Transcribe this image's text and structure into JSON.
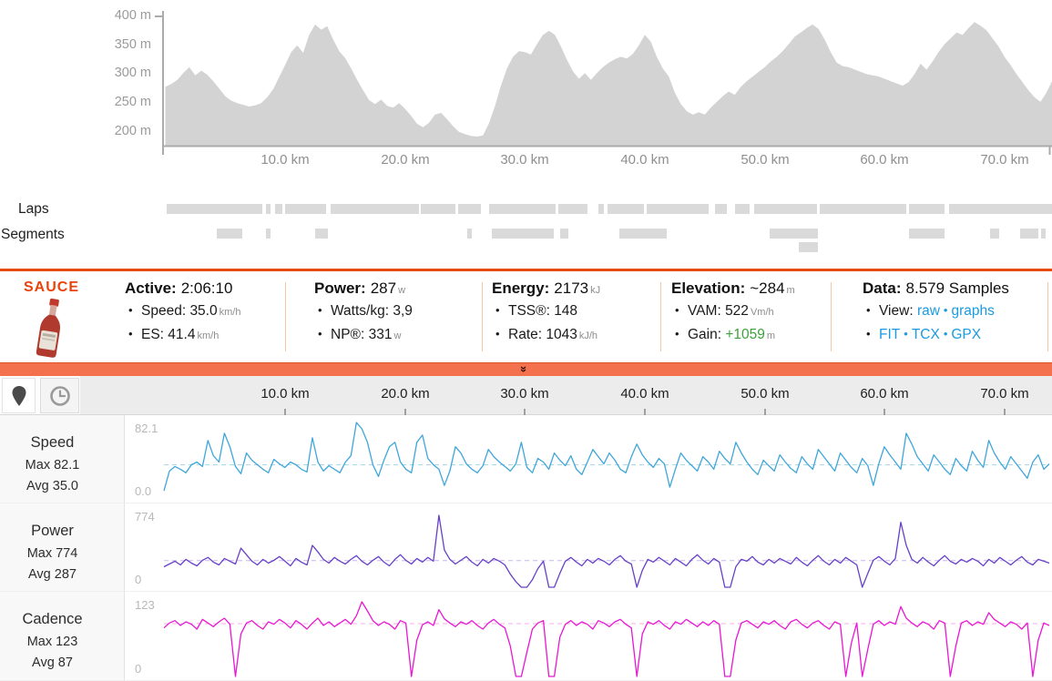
{
  "elevation": {
    "y_tick_labels": [
      "400 m",
      "350 m",
      "300 m",
      "250 m",
      "200 m"
    ],
    "x_tick_labels": [
      "10.0 km",
      "20.0 km",
      "30.0 km",
      "40.0 km",
      "50.0 km",
      "60.0 km",
      "70.0 km"
    ],
    "fill_color": "#d3d3d3",
    "axis_color": "#ababab",
    "y_range_m": [
      200,
      400
    ],
    "km_step": 0.5,
    "profile_m": [
      278,
      283,
      290,
      302,
      312,
      298,
      306,
      299,
      288,
      275,
      262,
      254,
      250,
      247,
      244,
      246,
      250,
      260,
      274,
      295,
      316,
      338,
      350,
      337,
      368,
      386,
      377,
      383,
      360,
      340,
      328,
      310,
      290,
      272,
      255,
      248,
      256,
      245,
      242,
      250,
      240,
      228,
      214,
      208,
      216,
      230,
      233,
      222,
      210,
      200,
      196,
      193,
      192,
      194,
      215,
      245,
      280,
      310,
      330,
      340,
      338,
      334,
      352,
      368,
      375,
      368,
      348,
      325,
      305,
      292,
      302,
      290,
      302,
      312,
      320,
      326,
      330,
      327,
      335,
      350,
      368,
      356,
      330,
      310,
      296,
      268,
      248,
      236,
      230,
      234,
      230,
      242,
      252,
      262,
      270,
      264,
      278,
      288,
      296,
      304,
      312,
      322,
      330,
      340,
      352,
      365,
      372,
      380,
      386,
      378,
      360,
      338,
      320,
      314,
      312,
      308,
      304,
      300,
      298,
      296,
      292,
      288,
      284,
      280,
      286,
      300,
      318,
      308,
      322,
      338,
      352,
      362,
      372,
      368,
      380,
      390,
      384,
      376,
      362,
      348,
      330,
      316,
      300,
      286,
      272,
      260,
      252,
      268,
      288
    ]
  },
  "laps": {
    "label": "Laps",
    "bar_color": "#dadada",
    "bars": [
      [
        0,
        105
      ],
      [
        109,
        5
      ],
      [
        119,
        8
      ],
      [
        130,
        45
      ],
      [
        180,
        97
      ],
      [
        279,
        38
      ],
      [
        320,
        25
      ],
      [
        354,
        73
      ],
      [
        430,
        32
      ],
      [
        474,
        6
      ],
      [
        484,
        40
      ],
      [
        527,
        68
      ],
      [
        602,
        13
      ],
      [
        624,
        16
      ],
      [
        645,
        69
      ],
      [
        717,
        95
      ],
      [
        815,
        39
      ],
      [
        859,
        113
      ]
    ]
  },
  "segments": {
    "label": "Segments",
    "bar_color": "#dadada",
    "bars": [
      [
        55,
        28
      ],
      [
        109,
        5
      ],
      [
        163,
        14
      ],
      [
        330,
        5
      ],
      [
        357,
        68
      ],
      [
        432,
        9
      ],
      [
        497,
        52
      ],
      [
        662,
        53
      ],
      [
        815,
        39
      ],
      [
        904,
        10
      ],
      [
        937,
        20
      ],
      [
        960,
        5
      ]
    ],
    "bars_row2": [
      [
        694,
        21
      ]
    ]
  },
  "sauce": {
    "brand": "SAUCE",
    "accent_color": "#e8430a",
    "link_color": "#1a9be0",
    "columns": [
      {
        "label": "Active:",
        "value": "2:06:10",
        "unit": "",
        "items": [
          {
            "label": "Speed:",
            "value": "35.0",
            "unit": "km/h"
          },
          {
            "label": "ES:",
            "value": "41.4",
            "unit": "km/h"
          }
        ]
      },
      {
        "label": "Power:",
        "value": "287",
        "unit": "w",
        "items": [
          {
            "label": "Watts/kg:",
            "value": "3,9",
            "unit": ""
          },
          {
            "label": "NP®:",
            "value": "331",
            "unit": "w"
          }
        ]
      },
      {
        "label": "Energy:",
        "value": "2173",
        "unit": "kJ",
        "items": [
          {
            "label": "TSS®:",
            "value": "148",
            "unit": ""
          },
          {
            "label": "Rate:",
            "value": "1043",
            "unit": "kJ/h"
          }
        ]
      },
      {
        "label": "Elevation:",
        "value": "~284",
        "unit": "m",
        "items": [
          {
            "label": "VAM:",
            "value": "522",
            "unit": "Vm/h"
          },
          {
            "label": "Gain:",
            "value": "+1059",
            "unit": "m",
            "value_class": "green"
          }
        ]
      },
      {
        "label": "Data:",
        "value": "8.579 Samples",
        "unit": "",
        "items": [
          {
            "label": "View:",
            "links": [
              "raw",
              "graphs"
            ]
          },
          {
            "links": [
              "FIT",
              "TCX",
              "GPX"
            ]
          }
        ]
      }
    ]
  },
  "collapse_bar": {
    "chevron": "»",
    "color": "#f4714d"
  },
  "toolbar": {
    "icons": [
      "map-pin",
      "clock"
    ]
  },
  "graphs": {
    "x_tick_labels": [
      "10.0 km",
      "20.0 km",
      "30.0 km",
      "40.0 km",
      "50.0 km",
      "60.0 km",
      "70.0 km"
    ],
    "rows": [
      {
        "name": "Speed",
        "max_label": "Max 82.1",
        "avg_label": "Avg 35.0",
        "ymax_label": "82.1",
        "ymin_label": "0.0",
        "ymax": 82.1,
        "avg": 35.0,
        "color": "#3fa6da",
        "avg_dash_color": "#a8d8f0",
        "values": [
          6,
          28,
          33,
          30,
          26,
          35,
          38,
          33,
          62,
          45,
          38,
          70,
          55,
          33,
          25,
          48,
          40,
          35,
          30,
          26,
          41,
          36,
          32,
          38,
          35,
          30,
          27,
          65,
          38,
          28,
          34,
          30,
          26,
          38,
          45,
          82,
          75,
          60,
          35,
          22,
          40,
          55,
          60,
          38,
          30,
          26,
          60,
          68,
          42,
          35,
          30,
          12,
          28,
          55,
          48,
          36,
          30,
          26,
          34,
          52,
          44,
          38,
          33,
          28,
          36,
          60,
          32,
          26,
          42,
          38,
          30,
          48,
          40,
          34,
          45,
          30,
          24,
          38,
          52,
          44,
          36,
          48,
          40,
          30,
          26,
          44,
          58,
          46,
          38,
          32,
          42,
          36,
          10,
          30,
          48,
          40,
          34,
          28,
          44,
          38,
          30,
          50,
          42,
          36,
          60,
          48,
          38,
          30,
          24,
          40,
          34,
          28,
          46,
          38,
          31,
          26,
          44,
          36,
          30,
          52,
          44,
          36,
          28,
          48,
          40,
          32,
          26,
          42,
          34,
          12,
          36,
          55,
          46,
          38,
          30,
          70,
          58,
          44,
          36,
          28,
          46,
          38,
          30,
          24,
          42,
          34,
          28,
          50,
          40,
          32,
          62,
          48,
          38,
          30,
          44,
          36,
          28,
          20,
          38,
          46,
          30,
          36
        ]
      },
      {
        "name": "Power",
        "max_label": "Max 774",
        "avg_label": "Avg 287",
        "ymax_label": "774",
        "ymin_label": "0",
        "ymax": 774,
        "avg": 287,
        "color": "#6740c6",
        "avg_dash_color": "#c7b6ee",
        "values": [
          220,
          250,
          280,
          240,
          300,
          260,
          230,
          290,
          320,
          270,
          240,
          310,
          280,
          250,
          420,
          350,
          280,
          240,
          300,
          260,
          290,
          330,
          280,
          230,
          310,
          270,
          240,
          450,
          380,
          300,
          260,
          320,
          280,
          250,
          300,
          340,
          280,
          240,
          290,
          330,
          270,
          230,
          300,
          350,
          290,
          250,
          310,
          270,
          320,
          280,
          774,
          400,
          300,
          250,
          290,
          330,
          270,
          230,
          300,
          260,
          310,
          280,
          240,
          140,
          60,
          0,
          0,
          80,
          200,
          280,
          0,
          0,
          150,
          280,
          320,
          270,
          230,
          300,
          260,
          310,
          280,
          240,
          300,
          340,
          280,
          250,
          0,
          180,
          300,
          270,
          320,
          280,
          240,
          310,
          270,
          230,
          300,
          350,
          290,
          250,
          310,
          270,
          0,
          0,
          220,
          300,
          280,
          330,
          270,
          240,
          300,
          260,
          310,
          280,
          250,
          320,
          270,
          230,
          290,
          340,
          280,
          240,
          300,
          260,
          320,
          280,
          240,
          0,
          150,
          290,
          330,
          280,
          240,
          310,
          700,
          450,
          300,
          260,
          320,
          270,
          230,
          290,
          340,
          280,
          250,
          300,
          270,
          310,
          280,
          230,
          300,
          260,
          320,
          280,
          240,
          290,
          330,
          270,
          240,
          300,
          280,
          260
        ]
      },
      {
        "name": "Cadence",
        "max_label": "Max 123",
        "avg_label": "Avg 87",
        "ymax_label": "123",
        "ymin_label": "0",
        "ymax": 123,
        "avg": 87,
        "color": "#e817d2",
        "avg_dash_color": "#f5abe9",
        "values": [
          80,
          88,
          92,
          84,
          90,
          86,
          78,
          94,
          88,
          82,
          90,
          96,
          86,
          0,
          70,
          88,
          92,
          84,
          78,
          90,
          86,
          94,
          88,
          80,
          92,
          86,
          78,
          88,
          96,
          84,
          90,
          82,
          88,
          94,
          86,
          100,
          123,
          108,
          92,
          84,
          90,
          86,
          78,
          92,
          88,
          0,
          60,
          85,
          90,
          84,
          110,
          95,
          88,
          82,
          90,
          86,
          92,
          84,
          78,
          88,
          94,
          86,
          80,
          50,
          0,
          0,
          40,
          78,
          88,
          92,
          0,
          0,
          65,
          86,
          92,
          84,
          90,
          86,
          78,
          92,
          88,
          82,
          90,
          94,
          86,
          80,
          0,
          70,
          90,
          86,
          92,
          84,
          78,
          90,
          86,
          94,
          88,
          82,
          90,
          84,
          92,
          86,
          0,
          0,
          60,
          88,
          92,
          86,
          80,
          90,
          86,
          92,
          84,
          78,
          90,
          94,
          86,
          80,
          88,
          92,
          84,
          78,
          90,
          86,
          0,
          55,
          88,
          0,
          45,
          86,
          92,
          84,
          90,
          86,
          115,
          96,
          88,
          82,
          90,
          86,
          78,
          92,
          88,
          0,
          50,
          88,
          92,
          84,
          90,
          86,
          105,
          94,
          88,
          82,
          90,
          86,
          78,
          88,
          0,
          60,
          88,
          84
        ]
      }
    ]
  }
}
